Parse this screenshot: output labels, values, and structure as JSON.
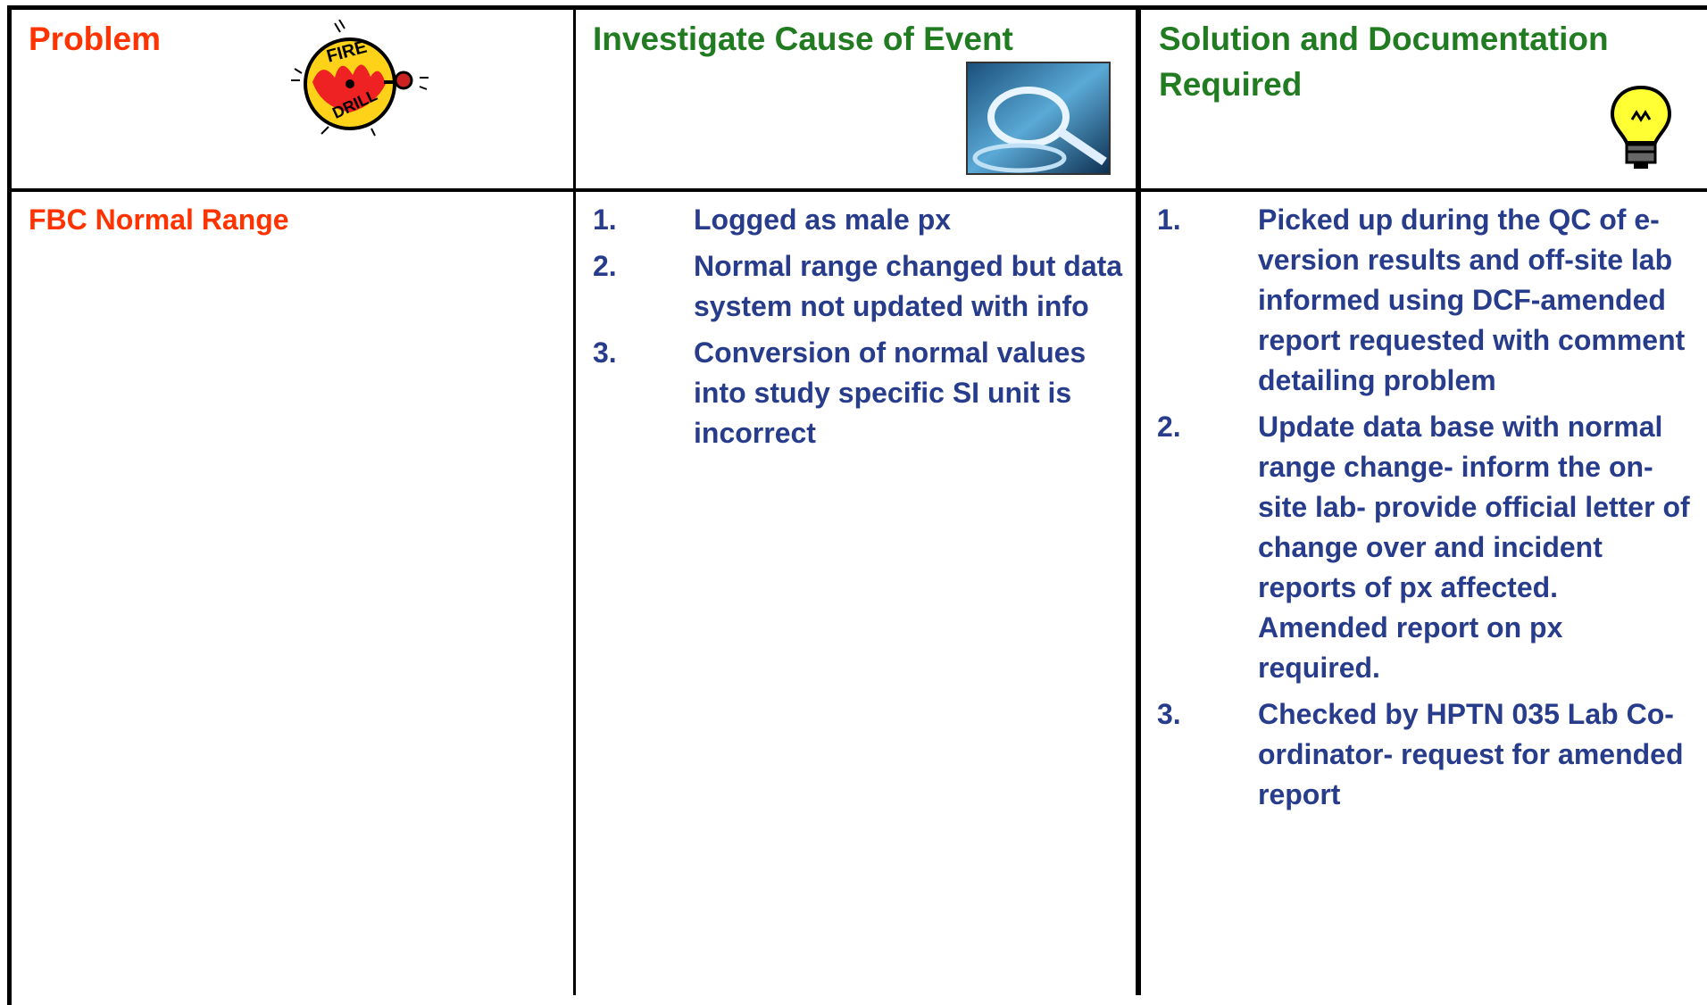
{
  "header": {
    "columns": [
      "Problem",
      "Investigate Cause of Event",
      "Solution and Documentation Required"
    ],
    "bell_text": [
      "FIRE",
      "DRILL"
    ]
  },
  "rows": [
    {
      "problem": "FBC Normal Range",
      "causes": [
        {
          "number": "1.",
          "text": "Logged as male px"
        },
        {
          "number": "2.",
          "text": "Normal range changed but data system not updated with info"
        },
        {
          "number": "3.",
          "text": "Conversion of normal values into study specific SI unit is incorrect"
        }
      ],
      "solutions": [
        {
          "number": "1.",
          "text": "Picked up during the QC of e-version results and off-site lab informed using DCF-amended report requested with comment detailing problem"
        },
        {
          "number": "2.",
          "text": "Update data base with normal range change- inform the on-site lab- provide official letter of change over and incident reports of px affected. Amended report on px required."
        },
        {
          "number": "3.",
          "text": "Checked by HPTN 035 Lab Co-ordinator- request for amended report"
        }
      ]
    }
  ]
}
